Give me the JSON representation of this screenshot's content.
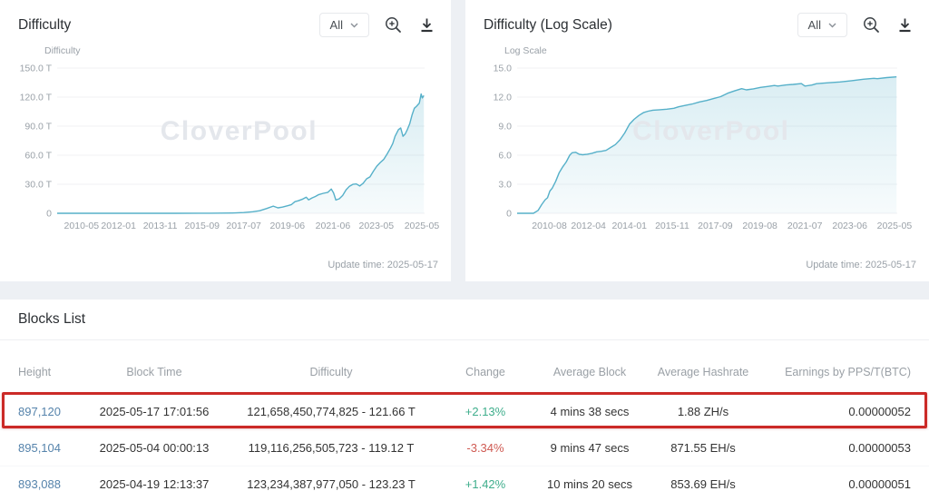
{
  "colors": {
    "chart_line": "#56b0c9",
    "positive": "#3fae8c",
    "negative": "#cf5a52",
    "link": "#5583ab",
    "annotation": "#cb2a27",
    "watermark_gray": "#e4e7ec"
  },
  "chart_data": [
    {
      "type": "area",
      "title": "Difficulty",
      "range_selector": "All",
      "ylabel": "Difficulty",
      "watermark": "CloverPool",
      "update_time": "Update time: 2025-05-17",
      "yticks": [
        "150.0 T",
        "120.0 T",
        "90.0 T",
        "60.0 T",
        "30.0 T",
        "0"
      ],
      "ytick_values": [
        150,
        120,
        90,
        60,
        30,
        0
      ],
      "ylim": [
        0,
        150
      ],
      "xlim": [
        2009.3,
        2025.45
      ],
      "xticks": [
        {
          "label": "2010-05",
          "x": 2010.37
        },
        {
          "label": "2012-01",
          "x": 2012.0
        },
        {
          "label": "2013-11",
          "x": 2013.83
        },
        {
          "label": "2015-09",
          "x": 2015.67
        },
        {
          "label": "2017-07",
          "x": 2017.5
        },
        {
          "label": "2019-06",
          "x": 2019.42
        },
        {
          "label": "2021-06",
          "x": 2021.42
        },
        {
          "label": "2023-05",
          "x": 2023.33
        },
        {
          "label": "2025-05",
          "x": 2025.33
        }
      ],
      "points": [
        [
          2009.3,
          0
        ],
        [
          2010.5,
          0
        ],
        [
          2011.5,
          0
        ],
        [
          2012.5,
          0
        ],
        [
          2013.5,
          0.0001
        ],
        [
          2014.5,
          0.0002
        ],
        [
          2015.5,
          0.05
        ],
        [
          2016.0,
          0.1
        ],
        [
          2016.5,
          0.2
        ],
        [
          2017.0,
          0.32
        ],
        [
          2017.5,
          0.71
        ],
        [
          2017.9,
          1.59
        ],
        [
          2018.2,
          2.6
        ],
        [
          2018.5,
          4.9
        ],
        [
          2018.8,
          7.4
        ],
        [
          2019.0,
          5.6
        ],
        [
          2019.2,
          6.4
        ],
        [
          2019.45,
          7.9
        ],
        [
          2019.6,
          9.0
        ],
        [
          2019.75,
          12.0
        ],
        [
          2019.9,
          12.9
        ],
        [
          2020.1,
          14.7
        ],
        [
          2020.25,
          16.6
        ],
        [
          2020.35,
          13.9
        ],
        [
          2020.5,
          15.8
        ],
        [
          2020.65,
          17.3
        ],
        [
          2020.8,
          19.3
        ],
        [
          2021.0,
          20.6
        ],
        [
          2021.2,
          21.7
        ],
        [
          2021.35,
          25.0
        ],
        [
          2021.45,
          21.0
        ],
        [
          2021.55,
          13.7
        ],
        [
          2021.7,
          15.0
        ],
        [
          2021.85,
          18.4
        ],
        [
          2022.0,
          24.3
        ],
        [
          2022.15,
          27.9
        ],
        [
          2022.3,
          29.9
        ],
        [
          2022.45,
          30.3
        ],
        [
          2022.6,
          28.2
        ],
        [
          2022.75,
          31.0
        ],
        [
          2022.9,
          35.6
        ],
        [
          2023.05,
          37.6
        ],
        [
          2023.2,
          43.5
        ],
        [
          2023.35,
          48.7
        ],
        [
          2023.5,
          52.4
        ],
        [
          2023.65,
          55.6
        ],
        [
          2023.8,
          61.0
        ],
        [
          2023.95,
          67.3
        ],
        [
          2024.05,
          72.0
        ],
        [
          2024.15,
          79.4
        ],
        [
          2024.3,
          86.4
        ],
        [
          2024.4,
          88.1
        ],
        [
          2024.5,
          79.5
        ],
        [
          2024.6,
          82.0
        ],
        [
          2024.7,
          86.9
        ],
        [
          2024.8,
          92.7
        ],
        [
          2024.9,
          101.6
        ],
        [
          2025.0,
          108.5
        ],
        [
          2025.1,
          110.6
        ],
        [
          2025.22,
          113.8
        ],
        [
          2025.3,
          123.23
        ],
        [
          2025.35,
          119.12
        ],
        [
          2025.42,
          121.66
        ]
      ]
    },
    {
      "type": "area",
      "title": "Difficulty (Log Scale)",
      "range_selector": "All",
      "ylabel": "Log Scale",
      "watermark": "CloverPool",
      "update_time": "Update time: 2025-05-17",
      "yticks": [
        "15.0",
        "12.0",
        "9.0",
        "6.0",
        "3.0",
        "0"
      ],
      "ytick_values": [
        15,
        12,
        9,
        6,
        3,
        0
      ],
      "ylim": [
        0,
        15
      ],
      "xlim": [
        2009.2,
        2025.45
      ],
      "xticks": [
        {
          "label": "2010-08",
          "x": 2010.58
        },
        {
          "label": "2012-04",
          "x": 2012.25
        },
        {
          "label": "2014-01",
          "x": 2014.0
        },
        {
          "label": "2015-11",
          "x": 2015.83
        },
        {
          "label": "2017-09",
          "x": 2017.67
        },
        {
          "label": "2019-08",
          "x": 2019.58
        },
        {
          "label": "2021-07",
          "x": 2021.5
        },
        {
          "label": "2023-06",
          "x": 2023.42
        },
        {
          "label": "2025-05",
          "x": 2025.33
        }
      ],
      "points": [
        [
          2009.2,
          0
        ],
        [
          2009.9,
          0
        ],
        [
          2010.1,
          0.3
        ],
        [
          2010.25,
          0.9
        ],
        [
          2010.4,
          1.4
        ],
        [
          2010.5,
          1.6
        ],
        [
          2010.6,
          2.3
        ],
        [
          2010.7,
          2.6
        ],
        [
          2010.85,
          3.3
        ],
        [
          2011.0,
          4.2
        ],
        [
          2011.15,
          4.8
        ],
        [
          2011.3,
          5.3
        ],
        [
          2011.45,
          6.0
        ],
        [
          2011.55,
          6.25
        ],
        [
          2011.7,
          6.3
        ],
        [
          2011.85,
          6.1
        ],
        [
          2012.0,
          6.05
        ],
        [
          2012.2,
          6.1
        ],
        [
          2012.4,
          6.2
        ],
        [
          2012.6,
          6.35
        ],
        [
          2012.8,
          6.4
        ],
        [
          2013.0,
          6.5
        ],
        [
          2013.2,
          6.8
        ],
        [
          2013.4,
          7.1
        ],
        [
          2013.6,
          7.6
        ],
        [
          2013.8,
          8.3
        ],
        [
          2014.0,
          9.2
        ],
        [
          2014.2,
          9.7
        ],
        [
          2014.4,
          10.1
        ],
        [
          2014.6,
          10.4
        ],
        [
          2014.8,
          10.55
        ],
        [
          2015.0,
          10.65
        ],
        [
          2015.3,
          10.7
        ],
        [
          2015.6,
          10.75
        ],
        [
          2015.9,
          10.85
        ],
        [
          2016.1,
          11.0
        ],
        [
          2016.4,
          11.15
        ],
        [
          2016.7,
          11.3
        ],
        [
          2017.0,
          11.5
        ],
        [
          2017.3,
          11.65
        ],
        [
          2017.6,
          11.85
        ],
        [
          2017.9,
          12.05
        ],
        [
          2018.2,
          12.4
        ],
        [
          2018.5,
          12.65
        ],
        [
          2018.8,
          12.87
        ],
        [
          2019.0,
          12.75
        ],
        [
          2019.3,
          12.85
        ],
        [
          2019.6,
          13.0
        ],
        [
          2019.9,
          13.1
        ],
        [
          2020.2,
          13.2
        ],
        [
          2020.35,
          13.14
        ],
        [
          2020.7,
          13.26
        ],
        [
          2021.0,
          13.31
        ],
        [
          2021.35,
          13.4
        ],
        [
          2021.5,
          13.14
        ],
        [
          2021.8,
          13.25
        ],
        [
          2022.0,
          13.39
        ],
        [
          2022.5,
          13.48
        ],
        [
          2023.0,
          13.57
        ],
        [
          2023.5,
          13.7
        ],
        [
          2024.0,
          13.85
        ],
        [
          2024.45,
          13.94
        ],
        [
          2024.6,
          13.9
        ],
        [
          2025.0,
          14.02
        ],
        [
          2025.42,
          14.09
        ]
      ]
    }
  ],
  "blocks_list": {
    "title": "Blocks List",
    "columns": [
      "Height",
      "Block Time",
      "Difficulty",
      "Change",
      "Average Block",
      "Average Hashrate",
      "Earnings by PPS/T(BTC)"
    ],
    "rows": [
      {
        "height": "897,120",
        "block_time": "2025-05-17 17:01:56",
        "difficulty": "121,658,450,774,825 - 121.66 T",
        "change": "+2.13%",
        "average_block": "4 mins 38 secs",
        "average_hashrate": "1.88 ZH/s",
        "earnings": "0.00000052",
        "highlighted": true
      },
      {
        "height": "895,104",
        "block_time": "2025-05-04 00:00:13",
        "difficulty": "119,116,256,505,723 - 119.12 T",
        "change": "-3.34%",
        "average_block": "9 mins 47 secs",
        "average_hashrate": "871.55 EH/s",
        "earnings": "0.00000053",
        "highlighted": false
      },
      {
        "height": "893,088",
        "block_time": "2025-04-19 12:13:37",
        "difficulty": "123,234,387,977,050 - 123.23 T",
        "change": "+1.42%",
        "average_block": "10 mins 20 secs",
        "average_hashrate": "853.69 EH/s",
        "earnings": "0.00000051",
        "highlighted": false
      }
    ]
  }
}
